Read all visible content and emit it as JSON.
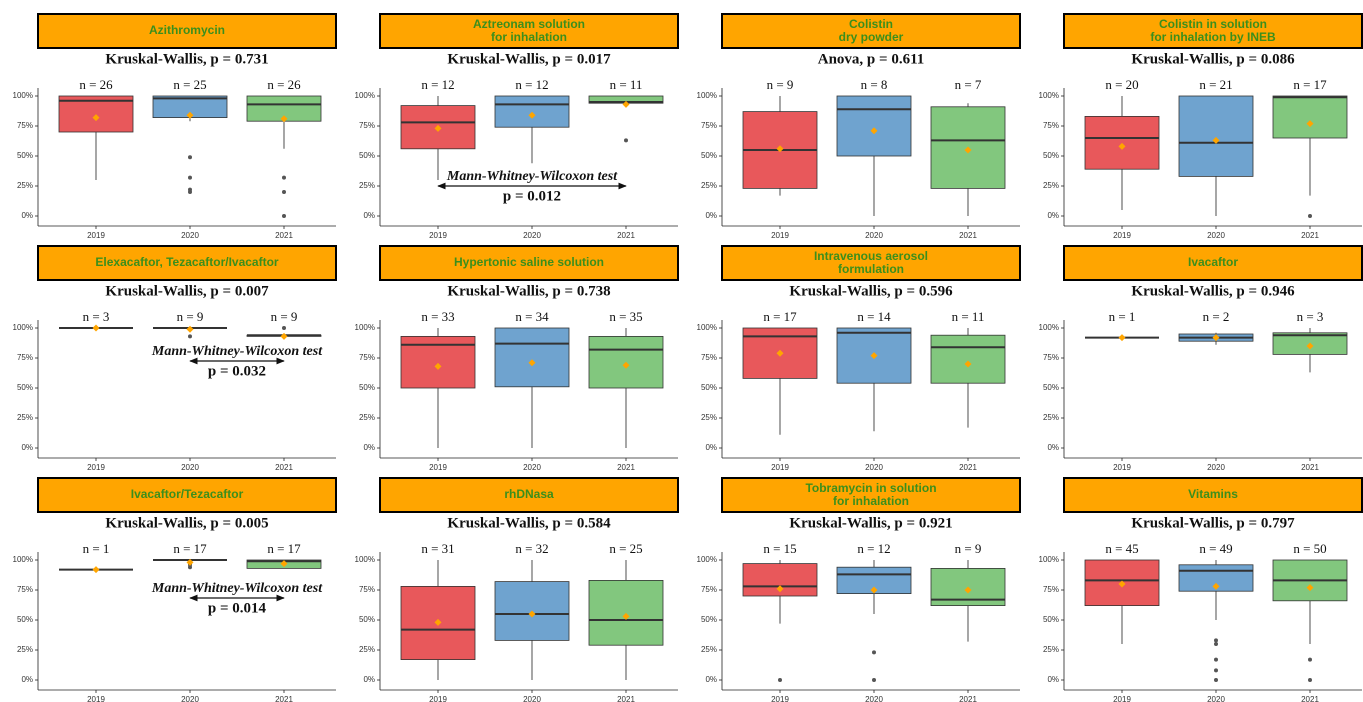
{
  "chart_data": [
    {
      "type": "box",
      "title": [
        "Azithromycin"
      ],
      "subtitle": "Kruskal-Wallis, p = 0.731",
      "categories": [
        "2019",
        "2020",
        "2021"
      ],
      "n_labels": [
        "n = 26",
        "n = 25",
        "n = 26"
      ],
      "colors": [
        "#e8585b",
        "#6fa3cf",
        "#82c77e"
      ],
      "mean_color": "#ffa500",
      "ylim": [
        0,
        100
      ],
      "yticks": [
        {
          "value": 0,
          "label": "0%"
        },
        {
          "value": 25,
          "label": "25%"
        },
        {
          "value": 50,
          "label": "50%"
        },
        {
          "value": 75,
          "label": "75%"
        },
        {
          "value": 100,
          "label": "100%"
        }
      ],
      "boxes": [
        {
          "low": 30,
          "q1": 70,
          "median": 96,
          "q3": 100,
          "high": 100,
          "mean": 82,
          "outliers": []
        },
        {
          "low": 79,
          "q1": 82,
          "median": 98,
          "q3": 100,
          "high": 100,
          "mean": 84,
          "outliers": [
            49,
            32,
            22,
            20
          ]
        },
        {
          "low": 56,
          "q1": 79,
          "median": 93,
          "q3": 100,
          "high": 100,
          "mean": 81,
          "outliers": [
            32,
            20,
            0
          ]
        }
      ]
    },
    {
      "type": "box",
      "title": [
        "Aztreonam solution",
        "for inhalation"
      ],
      "subtitle": "Kruskal-Wallis, p = 0.017",
      "categories": [
        "2019",
        "2020",
        "2021"
      ],
      "n_labels": [
        "n = 12",
        "n = 12",
        "n = 11"
      ],
      "colors": [
        "#e8585b",
        "#6fa3cf",
        "#82c77e"
      ],
      "mean_color": "#ffa500",
      "ylim": [
        0,
        100
      ],
      "yticks": [
        {
          "value": 0,
          "label": "0%"
        },
        {
          "value": 25,
          "label": "25%"
        },
        {
          "value": 50,
          "label": "50%"
        },
        {
          "value": 75,
          "label": "75%"
        },
        {
          "value": 100,
          "label": "100%"
        }
      ],
      "boxes": [
        {
          "low": 30,
          "q1": 56,
          "median": 78,
          "q3": 92,
          "high": 100,
          "mean": 73,
          "outliers": []
        },
        {
          "low": 44,
          "q1": 74,
          "median": 93,
          "q3": 100,
          "high": 100,
          "mean": 84,
          "outliers": []
        },
        {
          "low": 94,
          "q1": 94,
          "median": 95,
          "q3": 100,
          "high": 100,
          "mean": 93,
          "outliers": [
            63
          ]
        }
      ],
      "annotation": {
        "text": "Mann-Whitney-Wilcoxon test",
        "p": "p = 0.012"
      }
    },
    {
      "type": "box",
      "title": [
        "Colistin",
        "dry powder"
      ],
      "subtitle": "Anova, p = 0.611",
      "categories": [
        "2019",
        "2020",
        "2021"
      ],
      "n_labels": [
        "n = 9",
        "n = 8",
        "n = 7"
      ],
      "colors": [
        "#e8585b",
        "#6fa3cf",
        "#82c77e"
      ],
      "mean_color": "#ffa500",
      "ylim": [
        0,
        100
      ],
      "yticks": [
        {
          "value": 0,
          "label": "0%"
        },
        {
          "value": 25,
          "label": "25%"
        },
        {
          "value": 50,
          "label": "50%"
        },
        {
          "value": 75,
          "label": "75%"
        },
        {
          "value": 100,
          "label": "100%"
        }
      ],
      "boxes": [
        {
          "low": 17,
          "q1": 23,
          "median": 55,
          "q3": 87,
          "high": 100,
          "mean": 56,
          "outliers": []
        },
        {
          "low": 0,
          "q1": 50,
          "median": 89,
          "q3": 100,
          "high": 100,
          "mean": 71,
          "outliers": []
        },
        {
          "low": 0,
          "q1": 23,
          "median": 63,
          "q3": 91,
          "high": 94,
          "mean": 55,
          "outliers": []
        }
      ]
    },
    {
      "type": "box",
      "title": [
        "Colistin in solution",
        "for inhalation by INEB"
      ],
      "subtitle": "Kruskal-Wallis, p = 0.086",
      "categories": [
        "2019",
        "2020",
        "2021"
      ],
      "n_labels": [
        "n = 20",
        "n = 21",
        "n = 17"
      ],
      "colors": [
        "#e8585b",
        "#6fa3cf",
        "#82c77e"
      ],
      "mean_color": "#ffa500",
      "ylim": [
        0,
        100
      ],
      "yticks": [
        {
          "value": 0,
          "label": "0%"
        },
        {
          "value": 25,
          "label": "25%"
        },
        {
          "value": 50,
          "label": "50%"
        },
        {
          "value": 75,
          "label": "75%"
        },
        {
          "value": 100,
          "label": "100%"
        }
      ],
      "boxes": [
        {
          "low": 5,
          "q1": 39,
          "median": 65,
          "q3": 83,
          "high": 100,
          "mean": 58,
          "outliers": []
        },
        {
          "low": 0,
          "q1": 33,
          "median": 61,
          "q3": 100,
          "high": 100,
          "mean": 63,
          "outliers": []
        },
        {
          "low": 17,
          "q1": 65,
          "median": 99,
          "q3": 100,
          "high": 100,
          "mean": 77,
          "outliers": [
            0
          ]
        }
      ]
    },
    {
      "type": "box",
      "title": [
        "Elexacaftor, Tezacaftor/Ivacaftor"
      ],
      "subtitle": "Kruskal-Wallis, p = 0.007",
      "categories": [
        "2019",
        "2020",
        "2021"
      ],
      "n_labels": [
        "n = 3",
        "n = 9",
        "n = 9"
      ],
      "colors": [
        "#e8585b",
        "#6fa3cf",
        "#82c77e"
      ],
      "mean_color": "#ffa500",
      "ylim": [
        0,
        100
      ],
      "yticks": [
        {
          "value": 0,
          "label": "0%"
        },
        {
          "value": 25,
          "label": "25%"
        },
        {
          "value": 50,
          "label": "50%"
        },
        {
          "value": 75,
          "label": "75%"
        },
        {
          "value": 100,
          "label": "100%"
        }
      ],
      "boxes": [
        {
          "low": 100,
          "q1": 100,
          "median": 100,
          "q3": 100,
          "high": 100,
          "mean": 100,
          "outliers": []
        },
        {
          "low": 100,
          "q1": 100,
          "median": 100,
          "q3": 100,
          "high": 100,
          "mean": 99,
          "outliers": [
            93
          ]
        },
        {
          "low": 93,
          "q1": 93,
          "median": 94,
          "q3": 94,
          "high": 94,
          "mean": 93,
          "outliers": [
            100
          ]
        }
      ],
      "annotation": {
        "text": "Mann-Whitney-Wilcoxon test",
        "p": "p = 0.032"
      }
    },
    {
      "type": "box",
      "title": [
        "Hypertonic saline solution"
      ],
      "subtitle": "Kruskal-Wallis, p = 0.738",
      "categories": [
        "2019",
        "2020",
        "2021"
      ],
      "n_labels": [
        "n = 33",
        "n = 34",
        "n = 35"
      ],
      "colors": [
        "#e8585b",
        "#6fa3cf",
        "#82c77e"
      ],
      "mean_color": "#ffa500",
      "ylim": [
        0,
        100
      ],
      "yticks": [
        {
          "value": 0,
          "label": "0%"
        },
        {
          "value": 25,
          "label": "25%"
        },
        {
          "value": 50,
          "label": "50%"
        },
        {
          "value": 75,
          "label": "75%"
        },
        {
          "value": 100,
          "label": "100%"
        }
      ],
      "boxes": [
        {
          "low": 0,
          "q1": 50,
          "median": 86,
          "q3": 93,
          "high": 100,
          "mean": 68,
          "outliers": []
        },
        {
          "low": 0,
          "q1": 51,
          "median": 87,
          "q3": 100,
          "high": 100,
          "mean": 71,
          "outliers": []
        },
        {
          "low": 0,
          "q1": 50,
          "median": 82,
          "q3": 93,
          "high": 100,
          "mean": 69,
          "outliers": []
        }
      ]
    },
    {
      "type": "box",
      "title": [
        "Intravenous aerosol",
        "formulation"
      ],
      "subtitle": "Kruskal-Wallis, p = 0.596",
      "categories": [
        "2019",
        "2020",
        "2021"
      ],
      "n_labels": [
        "n = 17",
        "n = 14",
        "n = 11"
      ],
      "colors": [
        "#e8585b",
        "#6fa3cf",
        "#82c77e"
      ],
      "mean_color": "#ffa500",
      "ylim": [
        0,
        100
      ],
      "yticks": [
        {
          "value": 0,
          "label": "0%"
        },
        {
          "value": 25,
          "label": "25%"
        },
        {
          "value": 50,
          "label": "50%"
        },
        {
          "value": 75,
          "label": "75%"
        },
        {
          "value": 100,
          "label": "100%"
        }
      ],
      "boxes": [
        {
          "low": 11,
          "q1": 58,
          "median": 93,
          "q3": 100,
          "high": 100,
          "mean": 79,
          "outliers": []
        },
        {
          "low": 14,
          "q1": 54,
          "median": 96,
          "q3": 100,
          "high": 100,
          "mean": 77,
          "outliers": []
        },
        {
          "low": 17,
          "q1": 54,
          "median": 84,
          "q3": 94,
          "high": 100,
          "mean": 70,
          "outliers": []
        }
      ]
    },
    {
      "type": "box",
      "title": [
        "Ivacaftor"
      ],
      "subtitle": "Kruskal-Wallis, p = 0.946",
      "categories": [
        "2019",
        "2020",
        "2021"
      ],
      "n_labels": [
        "n = 1",
        "n = 2",
        "n = 3"
      ],
      "colors": [
        "#e8585b",
        "#6fa3cf",
        "#82c77e"
      ],
      "mean_color": "#ffa500",
      "ylim": [
        0,
        100
      ],
      "yticks": [
        {
          "value": 0,
          "label": "0%"
        },
        {
          "value": 25,
          "label": "25%"
        },
        {
          "value": 50,
          "label": "50%"
        },
        {
          "value": 75,
          "label": "75%"
        },
        {
          "value": 100,
          "label": "100%"
        }
      ],
      "boxes": [
        {
          "low": 92,
          "q1": 92,
          "median": 92,
          "q3": 92,
          "high": 92,
          "mean": 92,
          "outliers": []
        },
        {
          "low": 86,
          "q1": 89,
          "median": 92,
          "q3": 95,
          "high": 96,
          "mean": 92,
          "outliers": []
        },
        {
          "low": 63,
          "q1": 78,
          "median": 94,
          "q3": 96,
          "high": 100,
          "mean": 85,
          "outliers": []
        }
      ]
    },
    {
      "type": "box",
      "title": [
        "Ivacaftor/Tezacaftor"
      ],
      "subtitle": "Kruskal-Wallis, p = 0.005",
      "categories": [
        "2019",
        "2020",
        "2021"
      ],
      "n_labels": [
        "n = 1",
        "n = 17",
        "n = 17"
      ],
      "colors": [
        "#e8585b",
        "#6fa3cf",
        "#82c77e"
      ],
      "mean_color": "#ffa500",
      "ylim": [
        0,
        100
      ],
      "yticks": [
        {
          "value": 0,
          "label": "0%"
        },
        {
          "value": 25,
          "label": "25%"
        },
        {
          "value": 50,
          "label": "50%"
        },
        {
          "value": 75,
          "label": "75%"
        },
        {
          "value": 100,
          "label": "100%"
        }
      ],
      "boxes": [
        {
          "low": 92,
          "q1": 92,
          "median": 92,
          "q3": 92,
          "high": 92,
          "mean": 92,
          "outliers": []
        },
        {
          "low": 100,
          "q1": 100,
          "median": 100,
          "q3": 100,
          "high": 100,
          "mean": 98,
          "outliers": [
            96,
            94
          ]
        },
        {
          "low": 93,
          "q1": 93,
          "median": 99,
          "q3": 100,
          "high": 100,
          "mean": 97,
          "outliers": []
        }
      ],
      "annotation": {
        "text": "Mann-Whitney-Wilcoxon test",
        "p": "p = 0.014"
      }
    },
    {
      "type": "box",
      "title": [
        "rhDNasa"
      ],
      "subtitle": "Kruskal-Wallis, p = 0.584",
      "categories": [
        "2019",
        "2020",
        "2021"
      ],
      "n_labels": [
        "n = 31",
        "n = 32",
        "n = 25"
      ],
      "colors": [
        "#e8585b",
        "#6fa3cf",
        "#82c77e"
      ],
      "mean_color": "#ffa500",
      "ylim": [
        0,
        100
      ],
      "yticks": [
        {
          "value": 0,
          "label": "0%"
        },
        {
          "value": 25,
          "label": "25%"
        },
        {
          "value": 50,
          "label": "50%"
        },
        {
          "value": 75,
          "label": "75%"
        },
        {
          "value": 100,
          "label": "100%"
        }
      ],
      "boxes": [
        {
          "low": 0,
          "q1": 17,
          "median": 42,
          "q3": 78,
          "high": 100,
          "mean": 48,
          "outliers": []
        },
        {
          "low": 0,
          "q1": 33,
          "median": 55,
          "q3": 82,
          "high": 100,
          "mean": 55,
          "outliers": []
        },
        {
          "low": 0,
          "q1": 29,
          "median": 50,
          "q3": 83,
          "high": 100,
          "mean": 53,
          "outliers": []
        }
      ]
    },
    {
      "type": "box",
      "title": [
        "Tobramycin in solution",
        "for inhalation"
      ],
      "subtitle": "Kruskal-Wallis, p = 0.921",
      "categories": [
        "2019",
        "2020",
        "2021"
      ],
      "n_labels": [
        "n = 15",
        "n = 12",
        "n = 9"
      ],
      "colors": [
        "#e8585b",
        "#6fa3cf",
        "#82c77e"
      ],
      "mean_color": "#ffa500",
      "ylim": [
        0,
        100
      ],
      "yticks": [
        {
          "value": 0,
          "label": "0%"
        },
        {
          "value": 25,
          "label": "25%"
        },
        {
          "value": 50,
          "label": "50%"
        },
        {
          "value": 75,
          "label": "75%"
        },
        {
          "value": 100,
          "label": "100%"
        }
      ],
      "boxes": [
        {
          "low": 47,
          "q1": 70,
          "median": 78,
          "q3": 97,
          "high": 100,
          "mean": 76,
          "outliers": [
            0
          ]
        },
        {
          "low": 55,
          "q1": 72,
          "median": 88,
          "q3": 94,
          "high": 100,
          "mean": 75,
          "outliers": [
            23,
            0
          ]
        },
        {
          "low": 32,
          "q1": 62,
          "median": 67,
          "q3": 93,
          "high": 100,
          "mean": 75,
          "outliers": []
        }
      ]
    },
    {
      "type": "box",
      "title": [
        "Vitamins"
      ],
      "subtitle": "Kruskal-Wallis, p = 0.797",
      "categories": [
        "2019",
        "2020",
        "2021"
      ],
      "n_labels": [
        "n = 45",
        "n = 49",
        "n = 50"
      ],
      "colors": [
        "#e8585b",
        "#6fa3cf",
        "#82c77e"
      ],
      "mean_color": "#ffa500",
      "ylim": [
        0,
        100
      ],
      "yticks": [
        {
          "value": 0,
          "label": "0%"
        },
        {
          "value": 25,
          "label": "25%"
        },
        {
          "value": 50,
          "label": "50%"
        },
        {
          "value": 75,
          "label": "75%"
        },
        {
          "value": 100,
          "label": "100%"
        }
      ],
      "boxes": [
        {
          "low": 30,
          "q1": 62,
          "median": 83,
          "q3": 100,
          "high": 100,
          "mean": 80,
          "outliers": []
        },
        {
          "low": 50,
          "q1": 74,
          "median": 91,
          "q3": 96,
          "high": 100,
          "mean": 78,
          "outliers": [
            33,
            30,
            17,
            8,
            0
          ]
        },
        {
          "low": 30,
          "q1": 66,
          "median": 83,
          "q3": 100,
          "high": 100,
          "mean": 77,
          "outliers": [
            17,
            0
          ]
        }
      ]
    }
  ]
}
